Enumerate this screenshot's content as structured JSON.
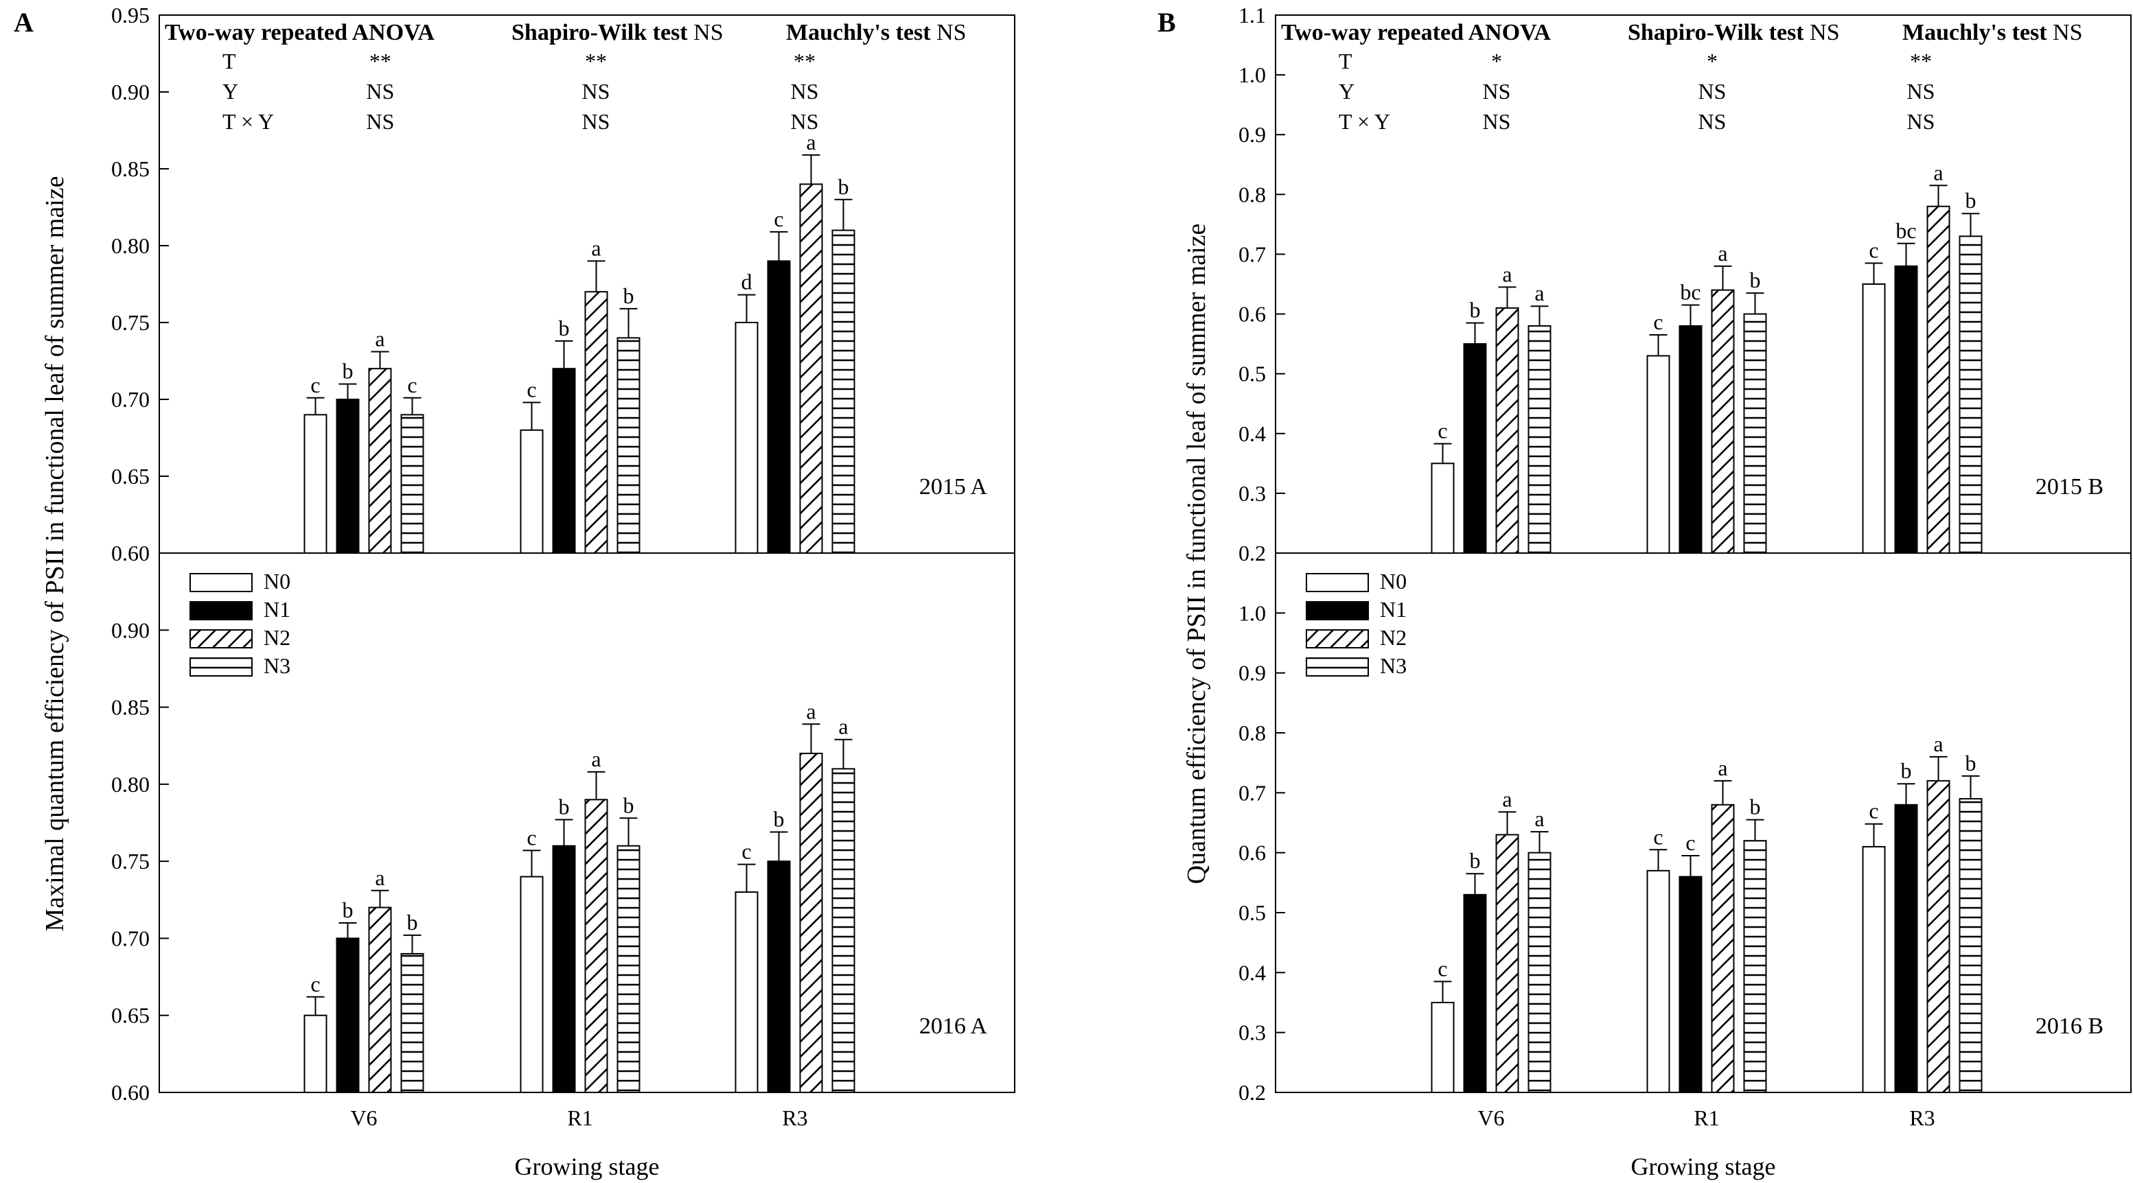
{
  "colors": {
    "ink": "#000000",
    "paper": "#ffffff"
  },
  "legend": {
    "entries": [
      "N0",
      "N1",
      "N2",
      "N3"
    ],
    "patterns": [
      "empty",
      "solid",
      "diagonal-hatch",
      "horizontal-hatch"
    ]
  },
  "chart_data": [
    {
      "type": "bar",
      "panel_label": "A",
      "ylabel": "Maximal quantum efficiency of PSII in functional leaf of summer maize",
      "xlabel": "Growing stage",
      "categories": [
        "V6",
        "R1",
        "R3"
      ],
      "stats_table": {
        "headers": [
          {
            "bold": "Two-way repeated ANOVA",
            "normal": ""
          },
          {
            "bold": "Shapiro-Wilk test",
            "normal": " NS"
          },
          {
            "bold": "Mauchly's test",
            "normal": " NS"
          }
        ],
        "rows": [
          {
            "label": "T",
            "values": [
              "**",
              "**",
              "**"
            ]
          },
          {
            "label": "Y",
            "values": [
              "NS",
              "NS",
              "NS"
            ]
          },
          {
            "label": "T × Y",
            "values": [
              "NS",
              "NS",
              "NS"
            ]
          }
        ]
      },
      "subplots": [
        {
          "label": "2015  A",
          "ylim": [
            0.6,
            0.95
          ],
          "yticks": [
            "0.60",
            "0.65",
            "0.70",
            "0.75",
            "0.80",
            "0.85",
            "0.90",
            "0.95"
          ],
          "show_legend": false,
          "series": [
            {
              "name": "N0",
              "values": [
                0.69,
                0.68,
                0.75
              ],
              "errors": [
                0.011,
                0.018,
                0.018
              ],
              "letters": [
                "c",
                "c",
                "d"
              ]
            },
            {
              "name": "N1",
              "values": [
                0.7,
                0.72,
                0.79
              ],
              "errors": [
                0.01,
                0.018,
                0.019
              ],
              "letters": [
                "b",
                "b",
                "c"
              ]
            },
            {
              "name": "N2",
              "values": [
                0.72,
                0.77,
                0.84
              ],
              "errors": [
                0.011,
                0.02,
                0.019
              ],
              "letters": [
                "a",
                "a",
                "a"
              ]
            },
            {
              "name": "N3",
              "values": [
                0.69,
                0.74,
                0.81
              ],
              "errors": [
                0.011,
                0.019,
                0.02
              ],
              "letters": [
                "c",
                "b",
                "b"
              ]
            }
          ]
        },
        {
          "label": "2016  A",
          "ylim": [
            0.6,
            0.95
          ],
          "yticks": [
            "0.60",
            "0.65",
            "0.70",
            "0.75",
            "0.80",
            "0.85",
            "0.90"
          ],
          "show_legend": true,
          "series": [
            {
              "name": "N0",
              "values": [
                0.65,
                0.74,
                0.73
              ],
              "errors": [
                0.012,
                0.017,
                0.018
              ],
              "letters": [
                "c",
                "c",
                "c"
              ]
            },
            {
              "name": "N1",
              "values": [
                0.7,
                0.76,
                0.75
              ],
              "errors": [
                0.01,
                0.017,
                0.019
              ],
              "letters": [
                "b",
                "b",
                "b"
              ]
            },
            {
              "name": "N2",
              "values": [
                0.72,
                0.79,
                0.82
              ],
              "errors": [
                0.011,
                0.018,
                0.019
              ],
              "letters": [
                "a",
                "a",
                "a"
              ]
            },
            {
              "name": "N3",
              "values": [
                0.69,
                0.76,
                0.81
              ],
              "errors": [
                0.012,
                0.018,
                0.019
              ],
              "letters": [
                "b",
                "b",
                "a"
              ]
            }
          ]
        }
      ]
    },
    {
      "type": "bar",
      "panel_label": "B",
      "ylabel": "Quantum efficiency of PSII in functional leaf of summer maize",
      "xlabel": "Growing stage",
      "categories": [
        "V6",
        "R1",
        "R3"
      ],
      "stats_table": {
        "headers": [
          {
            "bold": "Two-way repeated ANOVA",
            "normal": ""
          },
          {
            "bold": "Shapiro-Wilk test",
            "normal": " NS"
          },
          {
            "bold": "Mauchly's test",
            "normal": " NS"
          }
        ],
        "rows": [
          {
            "label": "T",
            "values": [
              "*",
              "*",
              "**"
            ]
          },
          {
            "label": "Y",
            "values": [
              "NS",
              "NS",
              "NS"
            ]
          },
          {
            "label": "T × Y",
            "values": [
              "NS",
              "NS",
              "NS"
            ]
          }
        ]
      },
      "subplots": [
        {
          "label": "2015  B",
          "ylim": [
            0.2,
            1.1
          ],
          "yticks": [
            "0.2",
            "0.3",
            "0.4",
            "0.5",
            "0.6",
            "0.7",
            "0.8",
            "0.9",
            "1.0",
            "1.1"
          ],
          "show_legend": false,
          "series": [
            {
              "name": "N0",
              "values": [
                0.35,
                0.53,
                0.65
              ],
              "errors": [
                0.033,
                0.035,
                0.035
              ],
              "letters": [
                "c",
                "c",
                "c"
              ]
            },
            {
              "name": "N1",
              "values": [
                0.55,
                0.58,
                0.68
              ],
              "errors": [
                0.035,
                0.035,
                0.038
              ],
              "letters": [
                "b",
                "bc",
                "bc"
              ]
            },
            {
              "name": "N2",
              "values": [
                0.61,
                0.64,
                0.78
              ],
              "errors": [
                0.035,
                0.04,
                0.035
              ],
              "letters": [
                "a",
                "a",
                "a"
              ]
            },
            {
              "name": "N3",
              "values": [
                0.58,
                0.6,
                0.73
              ],
              "errors": [
                0.033,
                0.035,
                0.038
              ],
              "letters": [
                "a",
                "b",
                "b"
              ]
            }
          ]
        },
        {
          "label": "2016  B",
          "ylim": [
            0.2,
            1.1
          ],
          "yticks": [
            "0.2",
            "0.3",
            "0.4",
            "0.5",
            "0.6",
            "0.7",
            "0.8",
            "0.9",
            "1.0"
          ],
          "show_legend": true,
          "series": [
            {
              "name": "N0",
              "values": [
                0.35,
                0.57,
                0.61
              ],
              "errors": [
                0.035,
                0.035,
                0.038
              ],
              "letters": [
                "c",
                "c",
                "c"
              ]
            },
            {
              "name": "N1",
              "values": [
                0.53,
                0.56,
                0.68
              ],
              "errors": [
                0.035,
                0.035,
                0.035
              ],
              "letters": [
                "b",
                "c",
                "b"
              ]
            },
            {
              "name": "N2",
              "values": [
                0.63,
                0.68,
                0.72
              ],
              "errors": [
                0.038,
                0.04,
                0.04
              ],
              "letters": [
                "a",
                "a",
                "a"
              ]
            },
            {
              "name": "N3",
              "values": [
                0.6,
                0.62,
                0.69
              ],
              "errors": [
                0.035,
                0.035,
                0.038
              ],
              "letters": [
                "a",
                "b",
                "b"
              ]
            }
          ]
        }
      ]
    }
  ]
}
